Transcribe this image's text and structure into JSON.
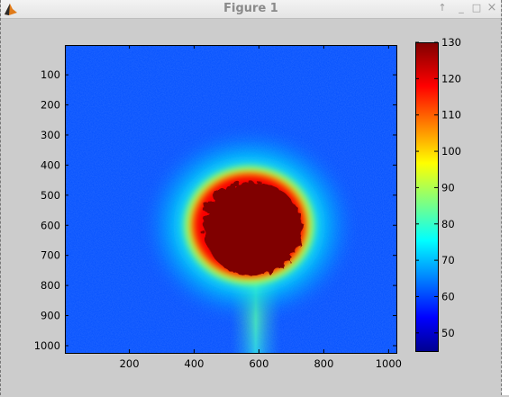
{
  "window": {
    "title": "Figure 1",
    "buttons": [
      "↑",
      "_",
      "□",
      "×"
    ]
  },
  "chart_data": {
    "type": "heatmap",
    "title": "",
    "xlabel": "",
    "ylabel": "",
    "xlim": [
      1,
      1024
    ],
    "ylim": [
      1024,
      1
    ],
    "x_ticks": [
      200,
      400,
      600,
      800,
      1000
    ],
    "y_ticks": [
      100,
      200,
      300,
      400,
      500,
      600,
      700,
      800,
      900,
      1000
    ],
    "colormap": "jet",
    "clim": [
      45,
      130
    ],
    "colorbar_ticks": [
      50,
      60,
      70,
      80,
      90,
      100,
      110,
      120,
      130
    ],
    "features": {
      "background_level": 62,
      "saturated_blob": {
        "center_x": 570,
        "center_y": 600,
        "radius": 165,
        "value": 130
      },
      "vertical_streak": {
        "center_x": 590,
        "from_y": 760,
        "to_y": 1024,
        "peak_value": 85
      }
    }
  }
}
